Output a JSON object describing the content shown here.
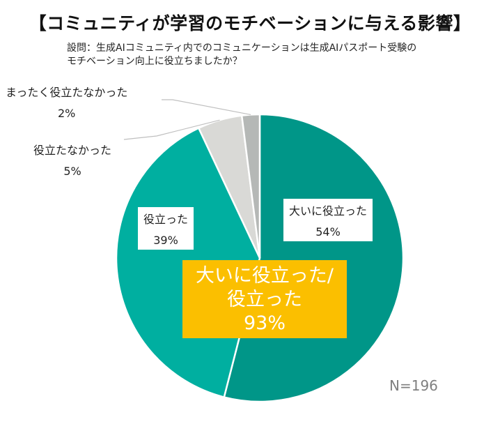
{
  "title": "【コミュニティが学習のモチベーションに与える影響】",
  "question": {
    "line1": "設問：生成AIコミュニティ内でのコミュニケーションは生成AIパスポート受験の",
    "line2": "モチベーション向上に役立ちましたか？"
  },
  "chart_data": {
    "type": "pie",
    "slices": [
      {
        "label": "大いに役立った",
        "value": 54,
        "value_text": "54%",
        "color": "#009688"
      },
      {
        "label": "役立った",
        "value": 39,
        "value_text": "39%",
        "color": "#00AFA0"
      },
      {
        "label": "役立たなかった",
        "value": 5,
        "value_text": "5%",
        "color": "#D9D9D6"
      },
      {
        "label": "まったく役立たなかった",
        "value": 2,
        "value_text": "2%",
        "color": "#B5B8B6"
      }
    ],
    "sample_size": "N=196"
  },
  "summary": {
    "line1": "大いに役立った/",
    "line2": "役立った",
    "value": "93%"
  }
}
